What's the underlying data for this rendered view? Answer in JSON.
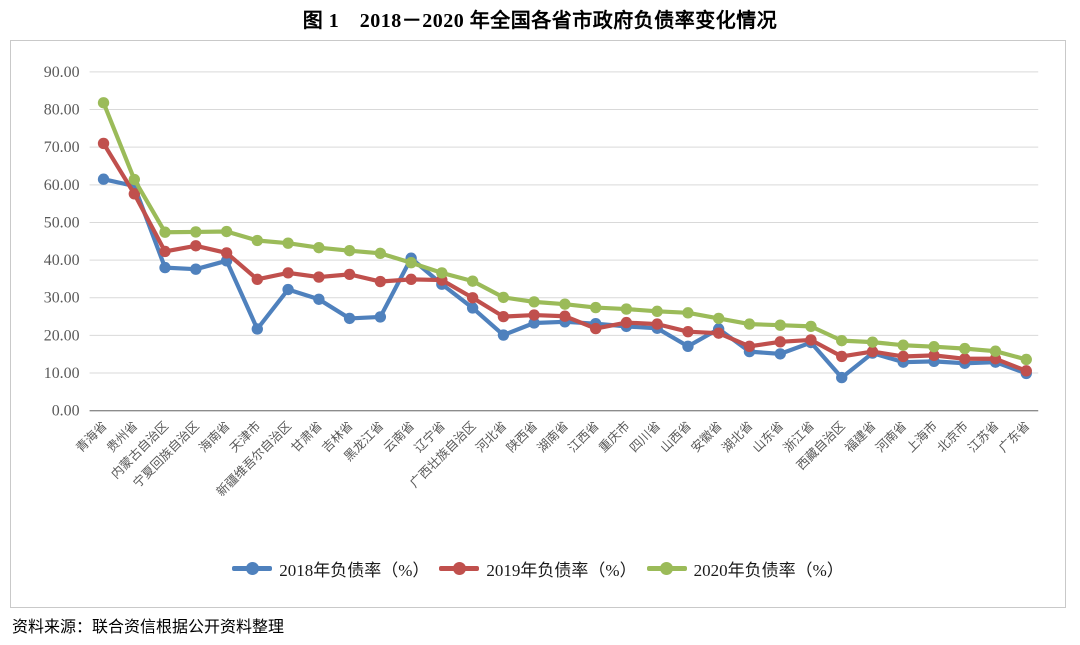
{
  "title": "图 1　2018－2020 年全国各省市政府负债率变化情况",
  "source_note": "资料来源：联合资信根据公开资料整理",
  "colors": {
    "series_2018": "#4F81BD",
    "series_2019": "#C0504D",
    "series_2020": "#9BBB59",
    "gridline": "#D9D9D9",
    "axis_line": "#8C8C8C",
    "tick_label": "#595959",
    "frame_border": "#C9C9C9",
    "title_text": "#000000"
  },
  "chart_data": {
    "type": "line",
    "title": "图 1　2018－2020 年全国各省市政府负债率变化情况",
    "categories": [
      "青海省",
      "贵州省",
      "内蒙古自治区",
      "宁夏回族自治区",
      "海南省",
      "天津市",
      "新疆维吾尔自治区",
      "甘肃省",
      "吉林省",
      "黑龙江省",
      "云南省",
      "辽宁省",
      "广西壮族自治区",
      "河北省",
      "陕西省",
      "湖南省",
      "江西省",
      "重庆市",
      "四川省",
      "山西省",
      "安徽省",
      "湖北省",
      "山东省",
      "浙江省",
      "西藏自治区",
      "福建省",
      "河南省",
      "上海市",
      "北京市",
      "江苏省",
      "广东省"
    ],
    "series": [
      {
        "name": "2018年负债率（%）",
        "color_key": "series_2018",
        "values": [
          61.5,
          59.7,
          38.0,
          37.6,
          39.8,
          21.7,
          32.2,
          29.6,
          24.5,
          24.9,
          40.5,
          33.6,
          27.3,
          20.1,
          23.3,
          23.6,
          23.1,
          22.4,
          21.9,
          17.1,
          21.7,
          15.7,
          15.1,
          18.1,
          8.8,
          15.3,
          12.9,
          13.1,
          12.6,
          12.9,
          9.9
        ]
      },
      {
        "name": "2019年负债率（%）",
        "color_key": "series_2019",
        "values": [
          71.0,
          57.6,
          42.3,
          43.8,
          41.9,
          34.9,
          36.6,
          35.5,
          36.2,
          34.3,
          34.9,
          34.7,
          30.0,
          25.0,
          25.4,
          25.1,
          21.8,
          23.4,
          23.0,
          21.0,
          20.6,
          17.1,
          18.3,
          18.8,
          14.4,
          15.7,
          14.4,
          14.7,
          13.8,
          13.8,
          10.6
        ]
      },
      {
        "name": "2020年负债率（%）",
        "color_key": "series_2020",
        "values": [
          81.8,
          61.4,
          47.4,
          47.5,
          47.6,
          45.2,
          44.5,
          43.3,
          42.5,
          41.8,
          39.3,
          36.6,
          34.4,
          30.1,
          28.9,
          28.3,
          27.4,
          27.0,
          26.4,
          26.0,
          24.5,
          23.0,
          22.7,
          22.4,
          18.6,
          18.2,
          17.4,
          17.0,
          16.5,
          15.8,
          13.6
        ]
      }
    ],
    "ylim": [
      0,
      90
    ],
    "yticks": [
      "0.00",
      "10.00",
      "20.00",
      "30.00",
      "40.00",
      "50.00",
      "60.00",
      "70.00",
      "80.00",
      "90.00"
    ],
    "grid": true,
    "legend_position": "bottom",
    "marker": "circle"
  }
}
